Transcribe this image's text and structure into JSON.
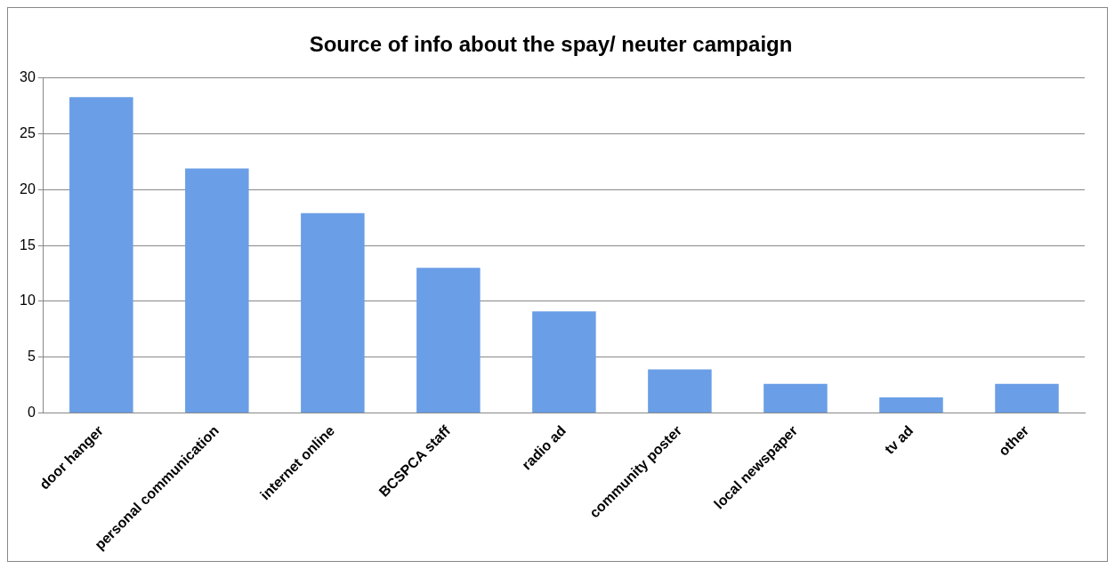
{
  "chart_data": {
    "type": "bar",
    "title": "Source of info about the spay/ neuter campaign",
    "categories": [
      "door hanger",
      "personal communication",
      "internet online",
      "BCSPCA staff",
      "radio ad",
      "community poster",
      "local newspaper",
      "tv ad",
      "other"
    ],
    "values": [
      28.3,
      21.9,
      17.9,
      13,
      9.1,
      3.9,
      2.6,
      1.4,
      2.6
    ],
    "color": "#6a9ee6",
    "ylim": [
      0,
      30
    ],
    "yticks": [
      0,
      5,
      10,
      15,
      20,
      25,
      30
    ],
    "grid": "y",
    "legend": false
  }
}
